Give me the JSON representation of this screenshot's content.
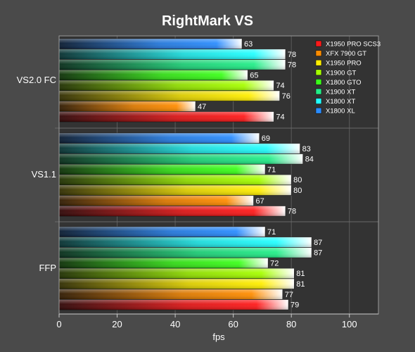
{
  "chart_data": {
    "type": "bar",
    "orientation": "horizontal",
    "title": "RightMark VS",
    "xlabel": "fps",
    "ylabel": "",
    "xlim": [
      0,
      110
    ],
    "xticks": [
      0,
      20,
      40,
      60,
      80,
      100
    ],
    "grid": true,
    "legend_position": "top-right",
    "categories": [
      "VS2.0 FC",
      "VS1.1",
      "FFP"
    ],
    "series": [
      {
        "name": "X1950 PRO SCS3",
        "color": "#ff1a1a",
        "values": [
          74,
          78,
          79
        ]
      },
      {
        "name": "XFX 7900 GT",
        "color": "#ff8c00",
        "values": [
          47,
          67,
          77
        ]
      },
      {
        "name": "X1950 PRO",
        "color": "#ffee00",
        "values": [
          76,
          80,
          81
        ]
      },
      {
        "name": "X1900 GT",
        "color": "#a6ff00",
        "values": [
          74,
          80,
          81
        ]
      },
      {
        "name": "X1800 GTO",
        "color": "#3bff1a",
        "values": [
          65,
          71,
          72
        ]
      },
      {
        "name": "X1900 XT",
        "color": "#22ee88",
        "values": [
          78,
          84,
          87
        ]
      },
      {
        "name": "X1800 XT",
        "color": "#22ffff",
        "values": [
          78,
          83,
          87
        ]
      },
      {
        "name": "X1800 XL",
        "color": "#2a8cff",
        "values": [
          63,
          69,
          71
        ]
      }
    ]
  }
}
